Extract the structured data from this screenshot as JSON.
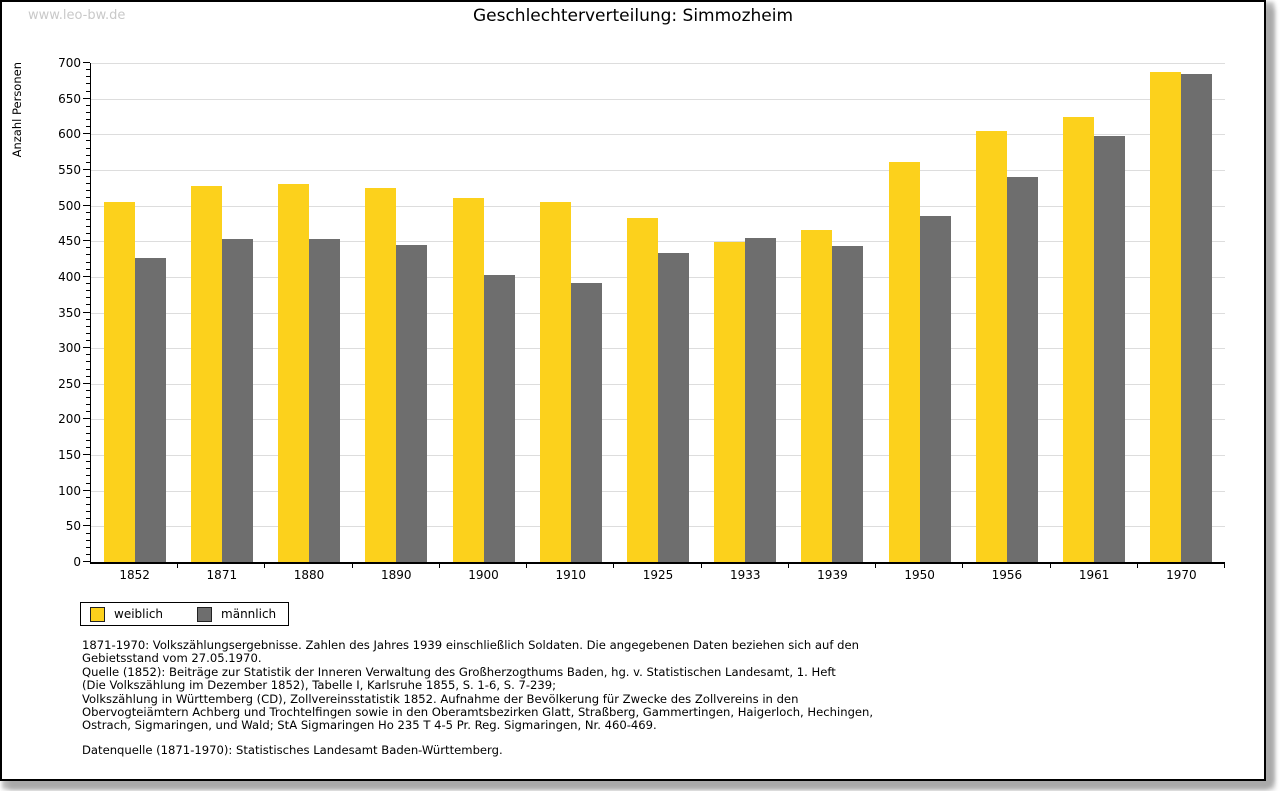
{
  "page": {
    "watermark": "www.leo-bw.de",
    "title": "Geschlechterverteilung: Simmozheim"
  },
  "chart_data": {
    "type": "bar",
    "title": "Geschlechterverteilung: Simmozheim",
    "xlabel": "",
    "ylabel": "Anzahl Personen",
    "ylim": [
      0,
      700
    ],
    "ytick_major": 50,
    "ytick_minor": 10,
    "grid": true,
    "legend_position": "bottom-left",
    "categories": [
      "1852",
      "1871",
      "1880",
      "1890",
      "1900",
      "1910",
      "1925",
      "1933",
      "1939",
      "1950",
      "1956",
      "1961",
      "1970"
    ],
    "series": [
      {
        "name": "weiblich",
        "color": "#FCD11C",
        "values": [
          505,
          527,
          530,
          525,
          511,
          505,
          483,
          449,
          466,
          561,
          604,
          624,
          688
        ]
      },
      {
        "name": "männlich",
        "color": "#6E6E6E",
        "values": [
          427,
          453,
          453,
          445,
          403,
          392,
          433,
          454,
          443,
          485,
          540,
          598,
          684
        ]
      }
    ]
  },
  "footnotes": {
    "lines": [
      "1871-1970: Volkszählungsergebnisse. Zahlen des Jahres 1939 einschließlich Soldaten. Die angegebenen Daten beziehen sich auf den",
      "Gebietsstand vom 27.05.1970.",
      "Quelle (1852): Beiträge zur Statistik der Inneren Verwaltung des Großherzogthums Baden, hg. v. Statistischen Landesamt, 1. Heft",
      "(Die Volkszählung im Dezember 1852), Tabelle I, Karlsruhe 1855, S. 1-6, S. 7-239;",
      "Volkszählung in Württemberg (CD), Zollvereinsstatistik 1852. Aufnahme der Bevölkerung für Zwecke des Zollvereins in den",
      "Obervogteiämtern Achberg und Trochtelfingen sowie in den Oberamtsbezirken Glatt, Straßberg, Gammertingen, Haigerloch, Hechingen,",
      "Ostrach, Sigmaringen, und Wald; StA Sigmaringen Ho 235 T 4-5 Pr. Reg. Sigmaringen, Nr. 460-469."
    ],
    "datasource": "Datenquelle (1871-1970): Statistisches Landesamt Baden-Württemberg."
  }
}
